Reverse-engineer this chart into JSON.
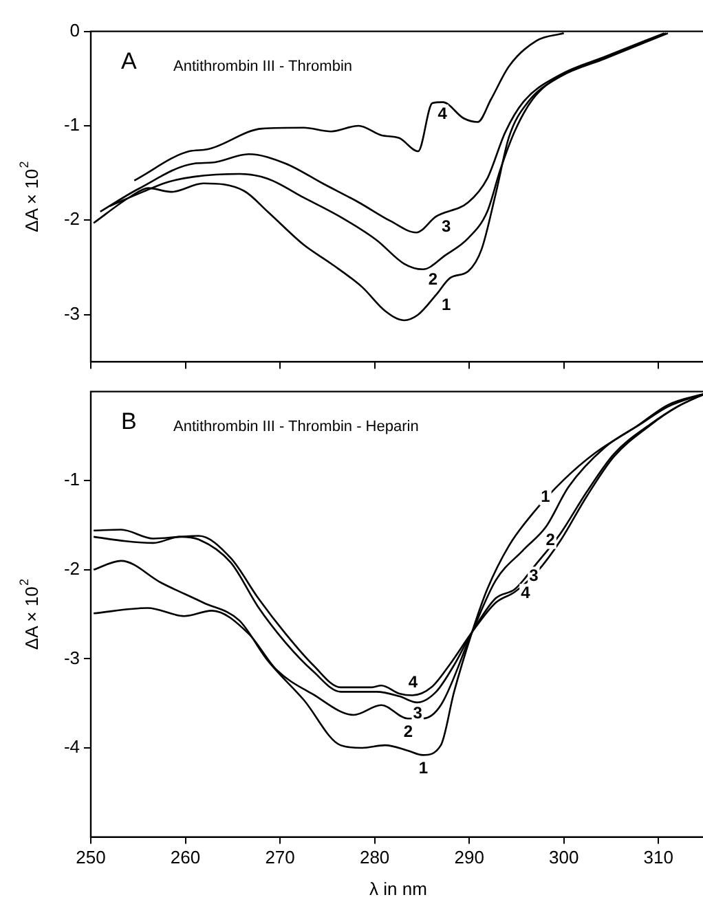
{
  "chart_data": [
    {
      "type": "line",
      "title": "A",
      "subtitle": "Antithrombin III - Thrombin",
      "ylabel": "ΔA × 10$^{2}$",
      "xlim": [
        250,
        315
      ],
      "xticks": [
        250,
        260,
        270,
        280,
        290,
        300,
        310
      ],
      "ylim": [
        -3.5,
        0
      ],
      "yticks": [
        -3,
        -2,
        -1,
        0
      ],
      "tick_labels": "y",
      "grid": false,
      "legend": false,
      "marker": "none",
      "line_style": "solid",
      "series": [
        {
          "name": "1",
          "color": "#000000",
          "x": [
            250.3,
            254.2,
            256.1,
            258.5,
            261.9,
            266.2,
            268.7,
            272.5,
            275.4,
            278.7,
            281.1,
            283.1,
            284.6,
            286.5,
            288,
            289.9,
            291.3,
            292.8,
            294.2,
            296.2,
            299.6,
            304.3,
            311
          ],
          "values": [
            -2.03,
            -1.75,
            -1.66,
            -1.7,
            -1.61,
            -1.69,
            -1.91,
            -2.26,
            -2.46,
            -2.71,
            -2.96,
            -3.06,
            -3,
            -2.79,
            -2.61,
            -2.54,
            -2.31,
            -1.72,
            -1.12,
            -0.75,
            -0.48,
            -0.29,
            -0.02
          ]
        },
        {
          "name": "2",
          "color": "#000000",
          "x": [
            252,
            255.5,
            258,
            260.9,
            265.7,
            268.7,
            272.5,
            276.3,
            280.2,
            283.1,
            285.1,
            287.5,
            289.9,
            291.9,
            293.3,
            294.8,
            296.7,
            299.6,
            304.3,
            310.8
          ],
          "values": [
            -1.85,
            -1.7,
            -1.6,
            -1.54,
            -1.51,
            -1.56,
            -1.76,
            -1.96,
            -2.21,
            -2.46,
            -2.52,
            -2.37,
            -2.19,
            -1.91,
            -1.46,
            -1.06,
            -0.72,
            -0.47,
            -0.28,
            -0.02
          ]
        },
        {
          "name": "3",
          "color": "#000000",
          "x": [
            251,
            255,
            260.9,
            262.8,
            266.7,
            270.6,
            274.5,
            278.3,
            281.7,
            284.4,
            286.5,
            289.9,
            291.9,
            293.8,
            295.7,
            299.6,
            304.3,
            310.6
          ],
          "values": [
            -1.91,
            -1.67,
            -1.4,
            -1.39,
            -1.3,
            -1.4,
            -1.61,
            -1.81,
            -2.01,
            -2.13,
            -1.96,
            -1.81,
            -1.56,
            -1.07,
            -0.75,
            -0.46,
            -0.27,
            -0.02
          ]
        },
        {
          "name": "4",
          "color": "#000000",
          "x": [
            254.6,
            260.4,
            262.3,
            268.1,
            272.5,
            275.4,
            278.3,
            280.7,
            282.6,
            284.6,
            286.1,
            287.2,
            289.4,
            290.9,
            292.3,
            294.2,
            297.1,
            300
          ],
          "values": [
            -1.58,
            -1.27,
            -1.25,
            -1.03,
            -1.02,
            -1.06,
            -1,
            -1.1,
            -1.13,
            -1.27,
            -0.76,
            -0.75,
            -0.92,
            -0.96,
            -0.72,
            -0.37,
            -0.1,
            -0.02
          ]
        }
      ]
    },
    {
      "type": "line",
      "title": "B",
      "subtitle": "Antithrombin III - Thrombin - Heparin",
      "xlabel": "λ in nm",
      "ylabel": "ΔA × 10$^{2}$",
      "xlim": [
        250,
        315
      ],
      "xticks": [
        250,
        260,
        270,
        280,
        290,
        300,
        310
      ],
      "ylim": [
        -5,
        0
      ],
      "yticks": [
        -4,
        -3,
        -2,
        -1
      ],
      "grid": false,
      "legend": false,
      "marker": "none",
      "line_style": "solid",
      "series": [
        {
          "name": "1",
          "color": "#000000",
          "x": [
            250.3,
            253.2,
            257.5,
            261.9,
            265.7,
            268.7,
            272.5,
            276.4,
            278.7,
            281.1,
            283.5,
            285.1,
            287,
            288.4,
            290.3,
            291.9,
            294.2,
            296.7,
            300,
            303.3,
            307.7,
            311,
            315
          ],
          "values": [
            -2,
            -1.9,
            -2.15,
            -2.37,
            -2.57,
            -3.02,
            -3.46,
            -3.97,
            -4,
            -3.97,
            -4.03,
            -4.08,
            -3.97,
            -3.37,
            -2.7,
            -2.22,
            -1.73,
            -1.37,
            -0.99,
            -0.69,
            -0.39,
            -0.15,
            -0.02
          ]
        },
        {
          "name": "2",
          "color": "#000000",
          "x": [
            250.3,
            256,
            259.9,
            262.8,
            266.7,
            269.6,
            273.5,
            277.8,
            280.7,
            283.5,
            285.1,
            287,
            290.3,
            292.8,
            295.7,
            298.1,
            300.5,
            304.3,
            308.2,
            311,
            315
          ],
          "values": [
            -2.49,
            -2.43,
            -2.52,
            -2.46,
            -2.72,
            -3.12,
            -3.4,
            -3.63,
            -3.52,
            -3.67,
            -3.67,
            -3.52,
            -2.7,
            -2.12,
            -1.78,
            -1.52,
            -1.07,
            -0.63,
            -0.36,
            -0.17,
            -0.02
          ]
        },
        {
          "name": "3",
          "color": "#000000",
          "x": [
            250.3,
            253.7,
            256.6,
            259.4,
            261.4,
            264.8,
            267.7,
            270.6,
            273.5,
            276.4,
            280.2,
            282.6,
            284.5,
            286.5,
            288.4,
            290.3,
            292.8,
            294.8,
            297.2,
            299.6,
            302.4,
            305.3,
            309.1,
            312,
            315
          ],
          "values": [
            -1.63,
            -1.68,
            -1.7,
            -1.63,
            -1.66,
            -1.92,
            -2.42,
            -2.82,
            -3.14,
            -3.37,
            -3.37,
            -3.42,
            -3.49,
            -3.37,
            -3.07,
            -2.7,
            -2.32,
            -2.22,
            -1.92,
            -1.6,
            -1.13,
            -0.7,
            -0.37,
            -0.17,
            -0.02
          ]
        },
        {
          "name": "4",
          "color": "#000000",
          "x": [
            250.3,
            253.2,
            256.6,
            259.4,
            261.4,
            264.8,
            267.7,
            270.6,
            273.5,
            276.4,
            279.7,
            280.7,
            282.6,
            284,
            286,
            287.9,
            290.3,
            292.8,
            294.8,
            297.2,
            299.6,
            302.4,
            305.3,
            309.1,
            312,
            315
          ],
          "values": [
            -1.56,
            -1.55,
            -1.65,
            -1.63,
            -1.62,
            -1.87,
            -2.32,
            -2.72,
            -3.07,
            -3.32,
            -3.32,
            -3.3,
            -3.39,
            -3.41,
            -3.32,
            -3.07,
            -2.7,
            -2.37,
            -2.25,
            -2.02,
            -1.68,
            -1.18,
            -0.73,
            -0.38,
            -0.17,
            -0.02
          ]
        }
      ]
    }
  ]
}
